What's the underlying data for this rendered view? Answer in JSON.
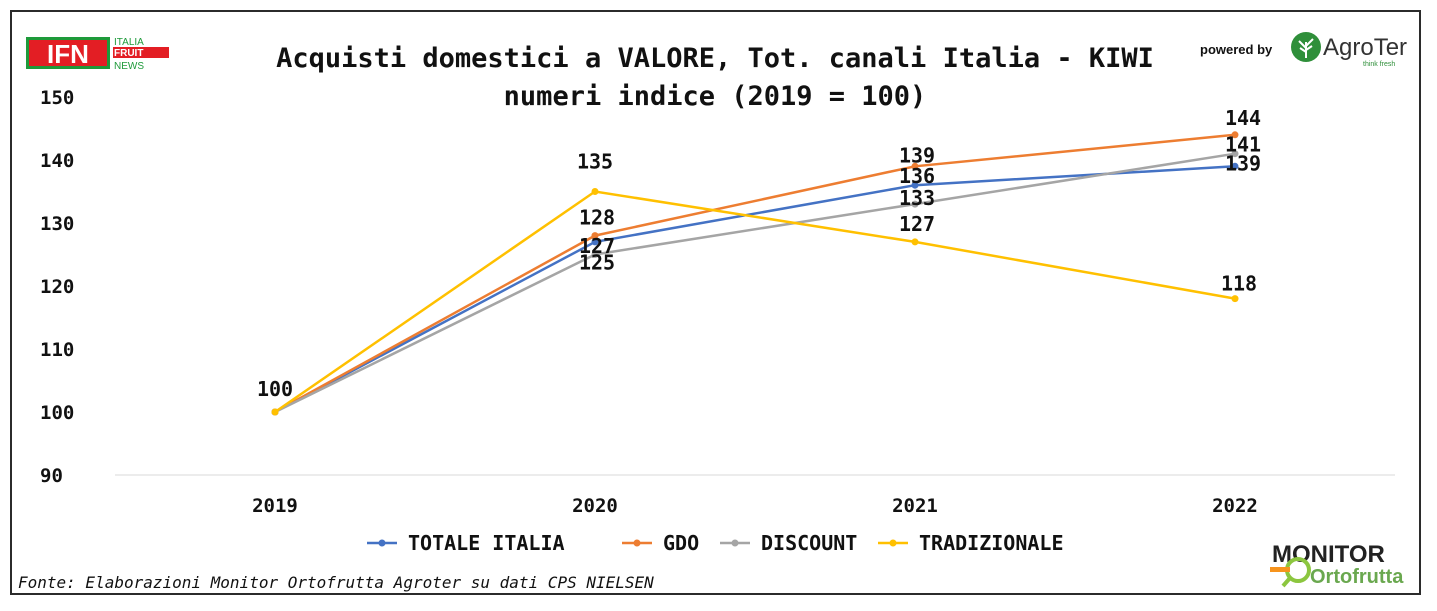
{
  "title_line1": "Acquisti domestici a VALORE, Tot. canali Italia - KIWI",
  "title_line2": "numeri indice (2019 = 100)",
  "logos": {
    "ifn_text": "IFN",
    "ifn_line1": "ITALIA",
    "ifn_line2": "FRUIT",
    "ifn_line3": "NEWS",
    "powered_by": "powered by",
    "agroter": "AgroTer",
    "agroter_tag": "think fresh",
    "monitor_top": "MONITOR",
    "monitor_bottom": "Ortofrutta"
  },
  "source_note": "Fonte: Elaborazioni Monitor Ortofrutta Agroter su dati CPS NIELSEN",
  "chart_data": {
    "type": "line",
    "title": "Acquisti domestici a VALORE, Tot. canali Italia - KIWI numeri indice (2019 = 100)",
    "categories": [
      "2019",
      "2020",
      "2021",
      "2022"
    ],
    "ylim": [
      90,
      150
    ],
    "yticks": [
      90,
      100,
      110,
      120,
      130,
      140,
      150
    ],
    "grid": false,
    "legend_position": "bottom",
    "series": [
      {
        "name": "TOTALE ITALIA",
        "color": "#4472C4",
        "values": [
          100,
          127,
          136,
          139
        ]
      },
      {
        "name": "GDO",
        "color": "#ED7D31",
        "values": [
          100,
          128,
          139,
          144
        ]
      },
      {
        "name": "DISCOUNT",
        "color": "#A5A5A5",
        "values": [
          100,
          125,
          133,
          141
        ]
      },
      {
        "name": "TRADIZIONALE",
        "color": "#FFC000",
        "values": [
          100,
          135,
          127,
          118
        ]
      }
    ]
  }
}
